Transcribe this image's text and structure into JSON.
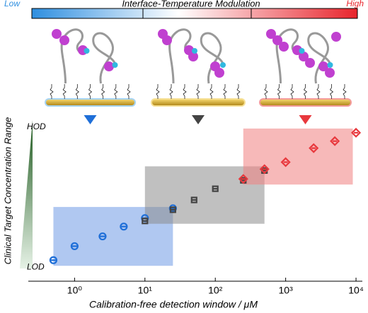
{
  "chart_data": {
    "type": "scatter",
    "heading": "Interface-Temperature Modulation",
    "low_label": "Low",
    "high_label": "High",
    "xlabel": "Calibration-free detection window / μM",
    "ylabel": "Clinical Target Concentration Range",
    "xscale": "log",
    "xlim": [
      0.22,
      12300
    ],
    "xticks": [
      {
        "value": 1,
        "label": "10⁰"
      },
      {
        "value": 10,
        "label": "10¹"
      },
      {
        "value": 100,
        "label": "10²"
      },
      {
        "value": 1000,
        "label": "10³"
      },
      {
        "value": 10000,
        "label": "10⁴"
      }
    ],
    "ylim": [
      -0.1,
      1.05
    ],
    "yticks": [
      {
        "value": 0,
        "label": "LOD"
      },
      {
        "value": 1,
        "label": "HOD"
      }
    ],
    "regions": [
      {
        "color": "#6f9be6",
        "xlim": [
          0.5,
          25
        ],
        "ylim": [
          0.01,
          0.43
        ]
      },
      {
        "color": "#8c8c8c",
        "xlim": [
          10,
          500
        ],
        "ylim": [
          0.31,
          0.72
        ]
      },
      {
        "color": "#f08080",
        "xlim": [
          250,
          9000
        ],
        "ylim": [
          0.59,
          0.99
        ]
      }
    ],
    "series": [
      {
        "color": "#1f6fd8",
        "marker": "circle",
        "x": [
          0.5,
          1,
          2.5,
          5,
          10,
          25
        ],
        "values": [
          0.05,
          0.15,
          0.22,
          0.29,
          0.35,
          0.42
        ]
      },
      {
        "color": "#444444",
        "marker": "square",
        "x": [
          10,
          25,
          50,
          100,
          250,
          500
        ],
        "values": [
          0.33,
          0.41,
          0.48,
          0.56,
          0.62,
          0.69
        ]
      },
      {
        "color": "#e8383d",
        "marker": "diamond",
        "x": [
          250,
          500,
          1000,
          2500,
          5000,
          10000
        ],
        "values": [
          0.63,
          0.7,
          0.75,
          0.85,
          0.9,
          0.96
        ]
      }
    ]
  }
}
